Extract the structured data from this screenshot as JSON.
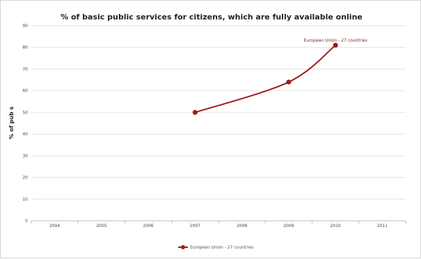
{
  "chart_data": {
    "type": "line",
    "title": "% of basic public services for citizens, which are fully available online",
    "xlabel": "",
    "ylabel": "% of pub s",
    "categories": [
      "2004",
      "2005",
      "2006",
      "2007",
      "2008",
      "2009",
      "2010",
      "2011"
    ],
    "ylim": [
      0,
      90
    ],
    "yticks": [
      0,
      10,
      20,
      30,
      40,
      50,
      60,
      70,
      80,
      90
    ],
    "grid": true,
    "legend_position": "bottom",
    "series": [
      {
        "name": "European Union - 27 countries",
        "color": "#9e1b1b",
        "x": [
          "2007",
          "2009",
          "2010"
        ],
        "values": [
          50,
          64,
          81
        ]
      }
    ],
    "annotations": [
      {
        "text": "European Union - 27 countries",
        "x": "2010",
        "y": 81
      }
    ]
  }
}
